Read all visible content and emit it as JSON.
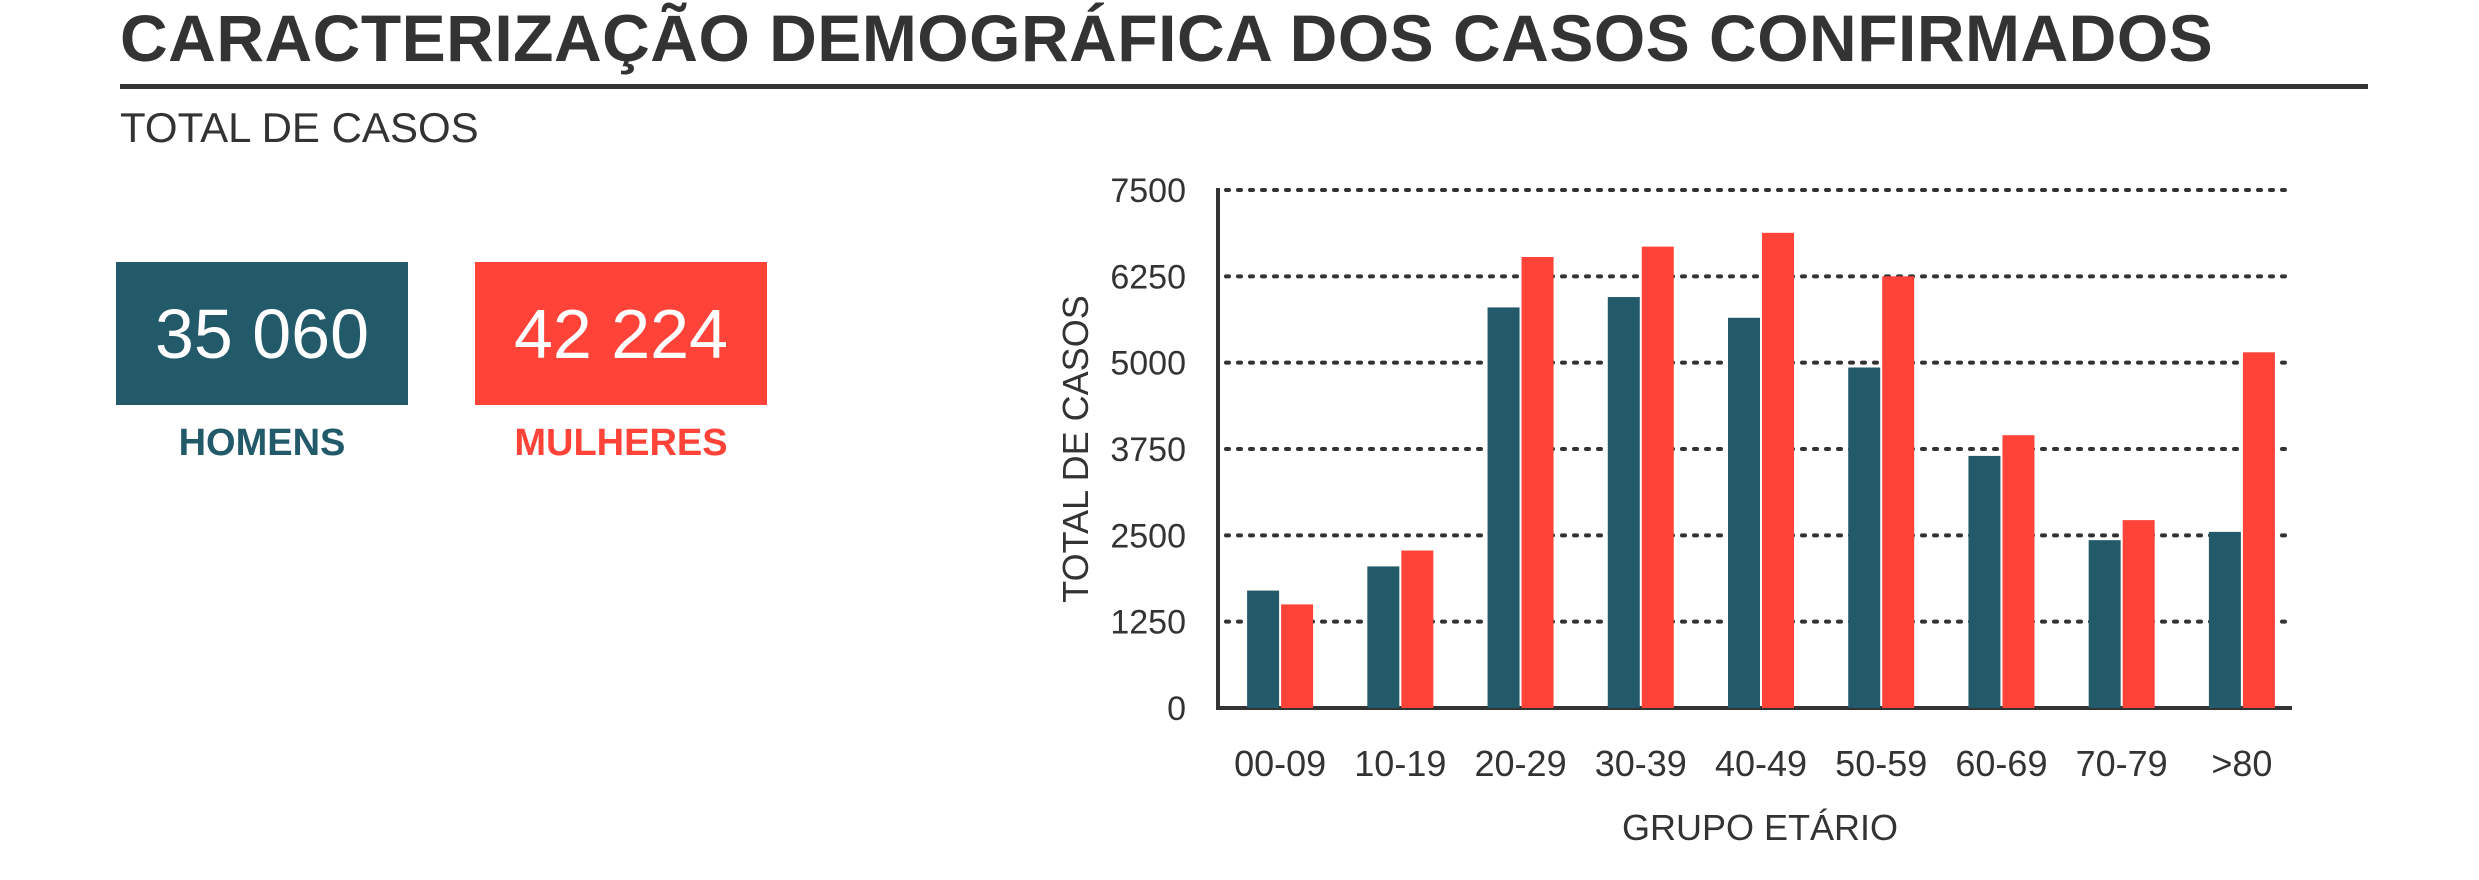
{
  "header": {
    "title": "CARACTERIZAÇÃO DEMOGRÁFICA DOS CASOS CONFIRMADOS",
    "subtitle": "TOTAL DE CASOS"
  },
  "summary": {
    "men": {
      "value": "35 060",
      "label": "HOMENS",
      "color": "#225a69"
    },
    "women": {
      "value": "42 224",
      "label": "MULHERES",
      "color": "#ff4338"
    }
  },
  "chart_data": {
    "type": "bar",
    "categories": [
      "00-09",
      "10-19",
      "20-29",
      "30-39",
      "40-49",
      "50-59",
      "60-69",
      "70-79",
      ">80"
    ],
    "series": [
      {
        "values": [
          1700,
          2050,
          5800,
          5950,
          5650,
          4930,
          3650,
          2430,
          2550
        ],
        "color": "#225a69"
      },
      {
        "values": [
          1500,
          2280,
          6530,
          6680,
          6880,
          6250,
          3950,
          2720,
          5150
        ],
        "color": "#ff4338"
      }
    ],
    "xlabel": "GRUPO ETÁRIO",
    "ylabel": "TOTAL DE CASOS",
    "ylim": [
      0,
      7500
    ],
    "yticks": [
      0,
      1250,
      2500,
      3750,
      5000,
      6250,
      7500
    ],
    "grid": true
  }
}
